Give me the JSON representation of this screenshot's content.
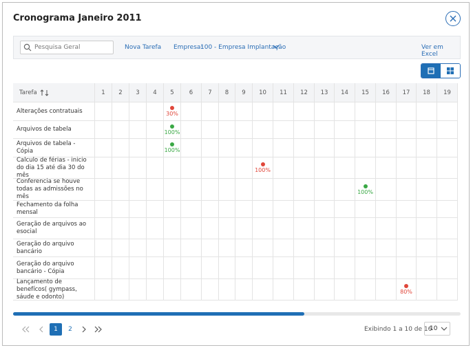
{
  "header": {
    "title": "Cronograma Janeiro 2011"
  },
  "toolbar": {
    "search_placeholder": "Pesquisa Geral",
    "new_task": "Nova Tarefa",
    "company_label": "Empresa:",
    "company_value": "100 - Empresa Implantação",
    "export": "Ver em Excel"
  },
  "table": {
    "task_header": "Tarefa",
    "days": [
      1,
      2,
      3,
      4,
      5,
      6,
      7,
      8,
      9,
      10,
      11,
      12,
      13,
      14,
      15,
      16,
      17,
      18,
      19
    ],
    "rows": [
      {
        "task": "Alterações contratuais",
        "day": 5,
        "color": "#e0463a",
        "progress": "30%"
      },
      {
        "task": "Arquivos de tabela",
        "day": 5,
        "color": "#3aa845",
        "progress": "100%"
      },
      {
        "task": "Arquivos de tabela - Cópia",
        "day": 5,
        "color": "#3aa845",
        "progress": "100%"
      },
      {
        "task": "Calculo de férias - inicio do dia 15 até dia 30 do mês",
        "day": 10,
        "color": "#e0463a",
        "progress": "100%"
      },
      {
        "task": "Conferencia se houve todas as admissões no mês",
        "day": 15,
        "color": "#3aa845",
        "progress": "100%"
      },
      {
        "task": "Fechamento da folha mensal"
      },
      {
        "task": "Geração de arquivos ao esocial"
      },
      {
        "task": "Geração do arquivo bancário"
      },
      {
        "task": "Geração do arquivo bancário - Cópia"
      },
      {
        "task": "Lançamento de benefícos( gympass, sáude e odonto)",
        "day": 17,
        "color": "#e0463a",
        "progress": "80%"
      }
    ]
  },
  "pagination": {
    "pages": [
      1,
      2
    ],
    "current": 1,
    "summary": "Exibindo 1 a 10 de 16",
    "page_size": 10
  }
}
